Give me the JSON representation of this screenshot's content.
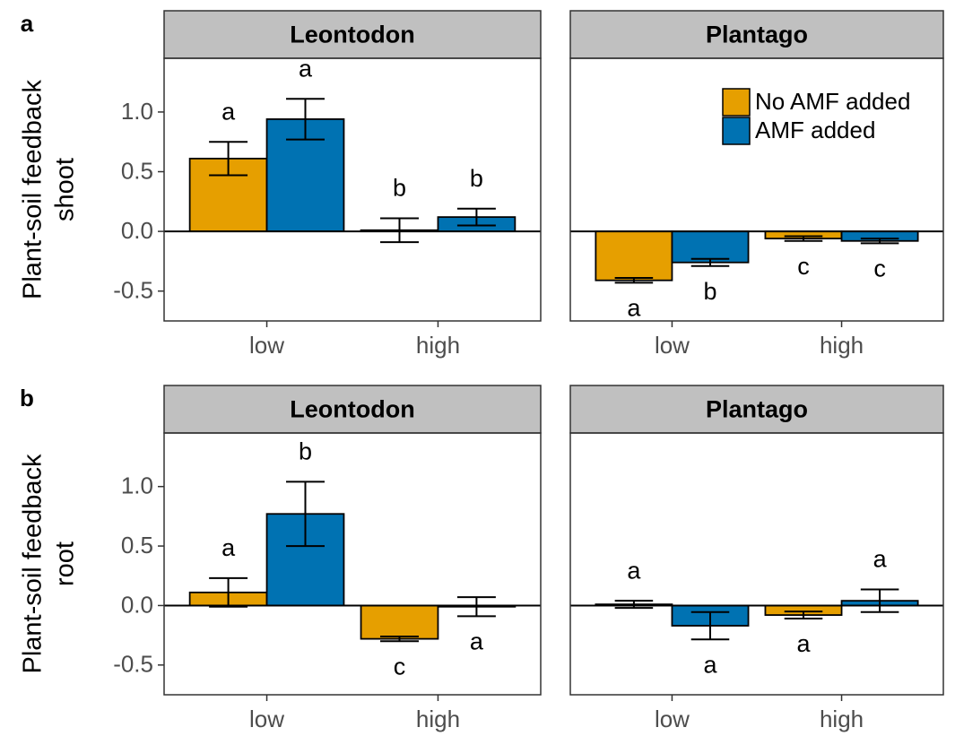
{
  "chart_data": [
    {
      "type": "bar",
      "panel_label": "a",
      "title": "Leontodon",
      "ylabel": [
        "Plant-soil feedback",
        "shoot"
      ],
      "categories": [
        "low",
        "high"
      ],
      "ylim": [
        -0.75,
        1.45
      ],
      "yticks": [
        -0.5,
        {
          "value": 0,
          "label": "0.0"
        },
        0.5,
        {
          "value": 1,
          "label": "1.0"
        }
      ],
      "series": [
        {
          "color": "#E69F00",
          "values": [
            0.61,
            0.01
          ],
          "errors": [
            0.14,
            0.1
          ],
          "letters": [
            "a",
            "b"
          ]
        },
        {
          "color": "#0072B2",
          "values": [
            0.94,
            0.12
          ],
          "errors": [
            0.17,
            0.07
          ],
          "letters": [
            "a",
            "b"
          ]
        }
      ]
    },
    {
      "type": "bar",
      "title": "Plantago",
      "categories": [
        "low",
        "high"
      ],
      "ylim": [
        -0.75,
        1.45
      ],
      "legend": "top-right",
      "series": [
        {
          "name": "No AMF added",
          "color": "#E69F00",
          "values": [
            -0.41,
            -0.06
          ],
          "errors": [
            0.02,
            0.02
          ],
          "letters": [
            "a",
            "c"
          ]
        },
        {
          "name": "AMF added",
          "color": "#0072B2",
          "values": [
            -0.26,
            -0.08
          ],
          "errors": [
            0.03,
            0.02
          ],
          "letters": [
            "b",
            "c"
          ]
        }
      ]
    },
    {
      "type": "bar",
      "panel_label": "b",
      "title": "Leontodon",
      "ylabel": [
        "Plant-soil feedback",
        "root"
      ],
      "categories": [
        "low",
        "high"
      ],
      "ylim": [
        -0.75,
        1.45
      ],
      "yticks": [
        -0.5,
        {
          "value": 0,
          "label": "0.0"
        },
        0.5,
        {
          "value": 1,
          "label": "1.0"
        }
      ],
      "series": [
        {
          "color": "#E69F00",
          "values": [
            0.11,
            -0.28
          ],
          "errors": [
            0.12,
            0.02
          ],
          "letters": [
            "a",
            "c"
          ]
        },
        {
          "color": "#0072B2",
          "values": [
            0.77,
            -0.01
          ],
          "errors": [
            0.27,
            0.08
          ],
          "letters": [
            "b",
            "a"
          ]
        }
      ]
    },
    {
      "type": "bar",
      "title": "Plantago",
      "categories": [
        "low",
        "high"
      ],
      "ylim": [
        -0.75,
        1.45
      ],
      "series": [
        {
          "color": "#E69F00",
          "values": [
            0.01,
            -0.08
          ],
          "errors": [
            0.03,
            0.03
          ],
          "letters": [
            "a",
            "a"
          ]
        },
        {
          "color": "#0072B2",
          "values": [
            -0.17,
            0.04
          ],
          "errors": [
            0.115,
            0.095
          ],
          "letters": [
            "a",
            "a"
          ]
        }
      ]
    }
  ]
}
